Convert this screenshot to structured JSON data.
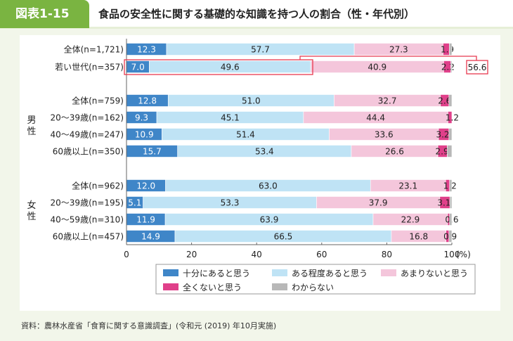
{
  "header": {
    "figure_no": "図表1-15",
    "title": "食品の安全性に関する基礎的な知識を持つ人の割合（性・年代別）"
  },
  "chart_data": {
    "type": "bar",
    "orientation": "horizontal",
    "stacked": true,
    "xlim": [
      0,
      100
    ],
    "xticks": [
      "0",
      "20",
      "40",
      "60",
      "80",
      "100"
    ],
    "xunit": "(%)",
    "legend": [
      "十分にあると思う",
      "ある程度あると思う",
      "あまりないと思う",
      "全くないと思う",
      "わからない"
    ],
    "colors": [
      "#3f86c8",
      "#bfe3f5",
      "#f4c6db",
      "#e0408a",
      "#b8b8b8"
    ],
    "groups": [
      {
        "label": "",
        "rows": [
          0,
          1
        ]
      },
      {
        "label": "男性",
        "rows": [
          2,
          3,
          4,
          5
        ]
      },
      {
        "label": "女性",
        "rows": [
          6,
          7,
          8,
          9
        ]
      }
    ],
    "rows": [
      {
        "label": "全体(n=1,721)",
        "values": [
          12.3,
          57.7,
          27.3,
          1.9,
          0.8
        ]
      },
      {
        "label": "若い世代(n=357)",
        "values": [
          7.0,
          49.6,
          40.9,
          2.2,
          0.3
        ]
      },
      {
        "label": "全体(n=759)",
        "values": [
          12.8,
          51.0,
          32.7,
          2.6,
          0.9
        ]
      },
      {
        "label": "20～39歳(n=162)",
        "values": [
          9.3,
          45.1,
          44.4,
          1.2,
          0
        ]
      },
      {
        "label": "40～49歳(n=247)",
        "values": [
          10.9,
          51.4,
          33.6,
          3.2,
          0.9
        ]
      },
      {
        "label": "60歳以上(n=350)",
        "values": [
          15.7,
          53.4,
          26.6,
          2.9,
          1.4
        ]
      },
      {
        "label": "全体(n=962)",
        "values": [
          12.0,
          63.0,
          23.1,
          1.2,
          0.7
        ]
      },
      {
        "label": "20～39歳(n=195)",
        "values": [
          5.1,
          53.3,
          37.9,
          3.1,
          0.6
        ]
      },
      {
        "label": "40～59歳(n=310)",
        "values": [
          11.9,
          63.9,
          22.9,
          0.6,
          0.7
        ]
      },
      {
        "label": "60歳以上(n=457)",
        "values": [
          14.9,
          66.5,
          16.8,
          0.9,
          0.9
        ]
      }
    ],
    "annotation": {
      "label": "56.6",
      "highlight_row": 1
    }
  },
  "source": "資料：農林水産省「食育に関する意識調査」(令和元 (2019) 年10月実施)"
}
